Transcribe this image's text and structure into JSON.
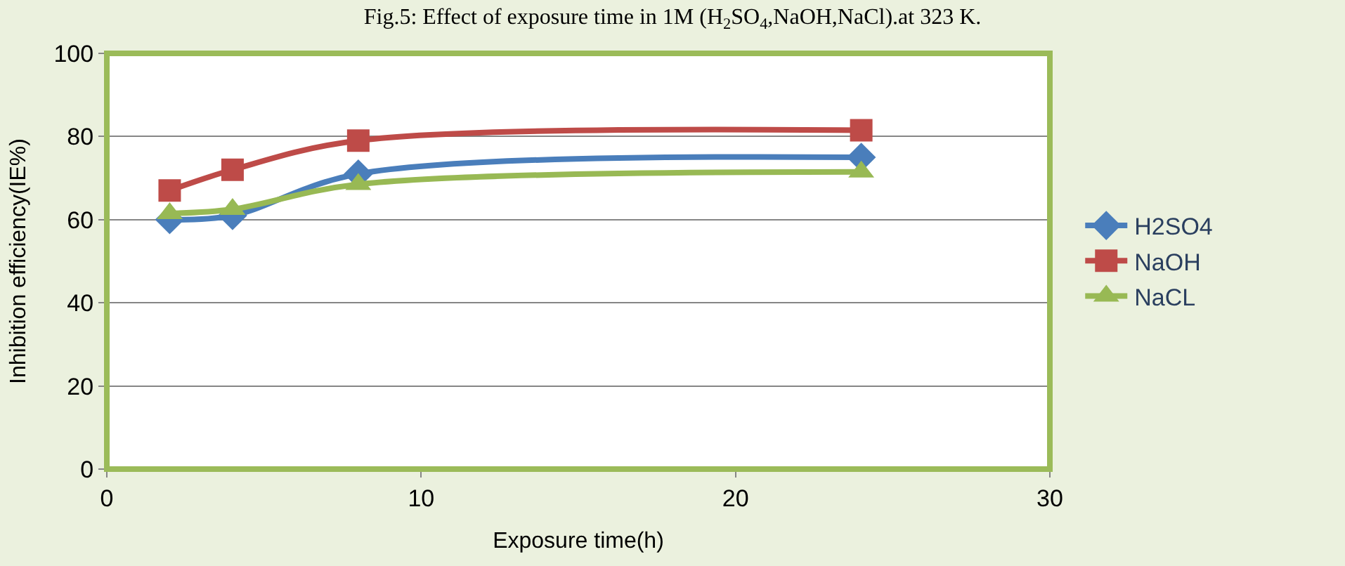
{
  "chart_data": {
    "type": "line",
    "title": "Fig.5: Effect of exposure time in 1M (H$_{2}$SO$_{4}$,NaOH,NaCl).at 323 K.",
    "xlabel": "Exposure time(h)",
    "ylabel": "Inhibition efficiency(IE%)",
    "x": [
      2,
      4,
      8,
      24
    ],
    "series": [
      {
        "name": "H2SO4",
        "color": "#4a7ebb",
        "marker": "diamond",
        "values": [
          60,
          61,
          71,
          75
        ]
      },
      {
        "name": "NaOH",
        "color": "#be4b48",
        "marker": "square",
        "values": [
          67,
          72,
          79,
          81.5
        ]
      },
      {
        "name": "NaCL",
        "color": "#98b954",
        "marker": "triangle",
        "values": [
          61.5,
          62.5,
          68.5,
          71.5
        ]
      }
    ],
    "xlim": [
      0,
      30
    ],
    "xticks": [
      0,
      10,
      20,
      30
    ],
    "ylim": [
      0,
      100
    ],
    "yticks": [
      0,
      20,
      40,
      60,
      80,
      100
    ],
    "grid": "y",
    "legend": "right",
    "line_style": "solid"
  }
}
